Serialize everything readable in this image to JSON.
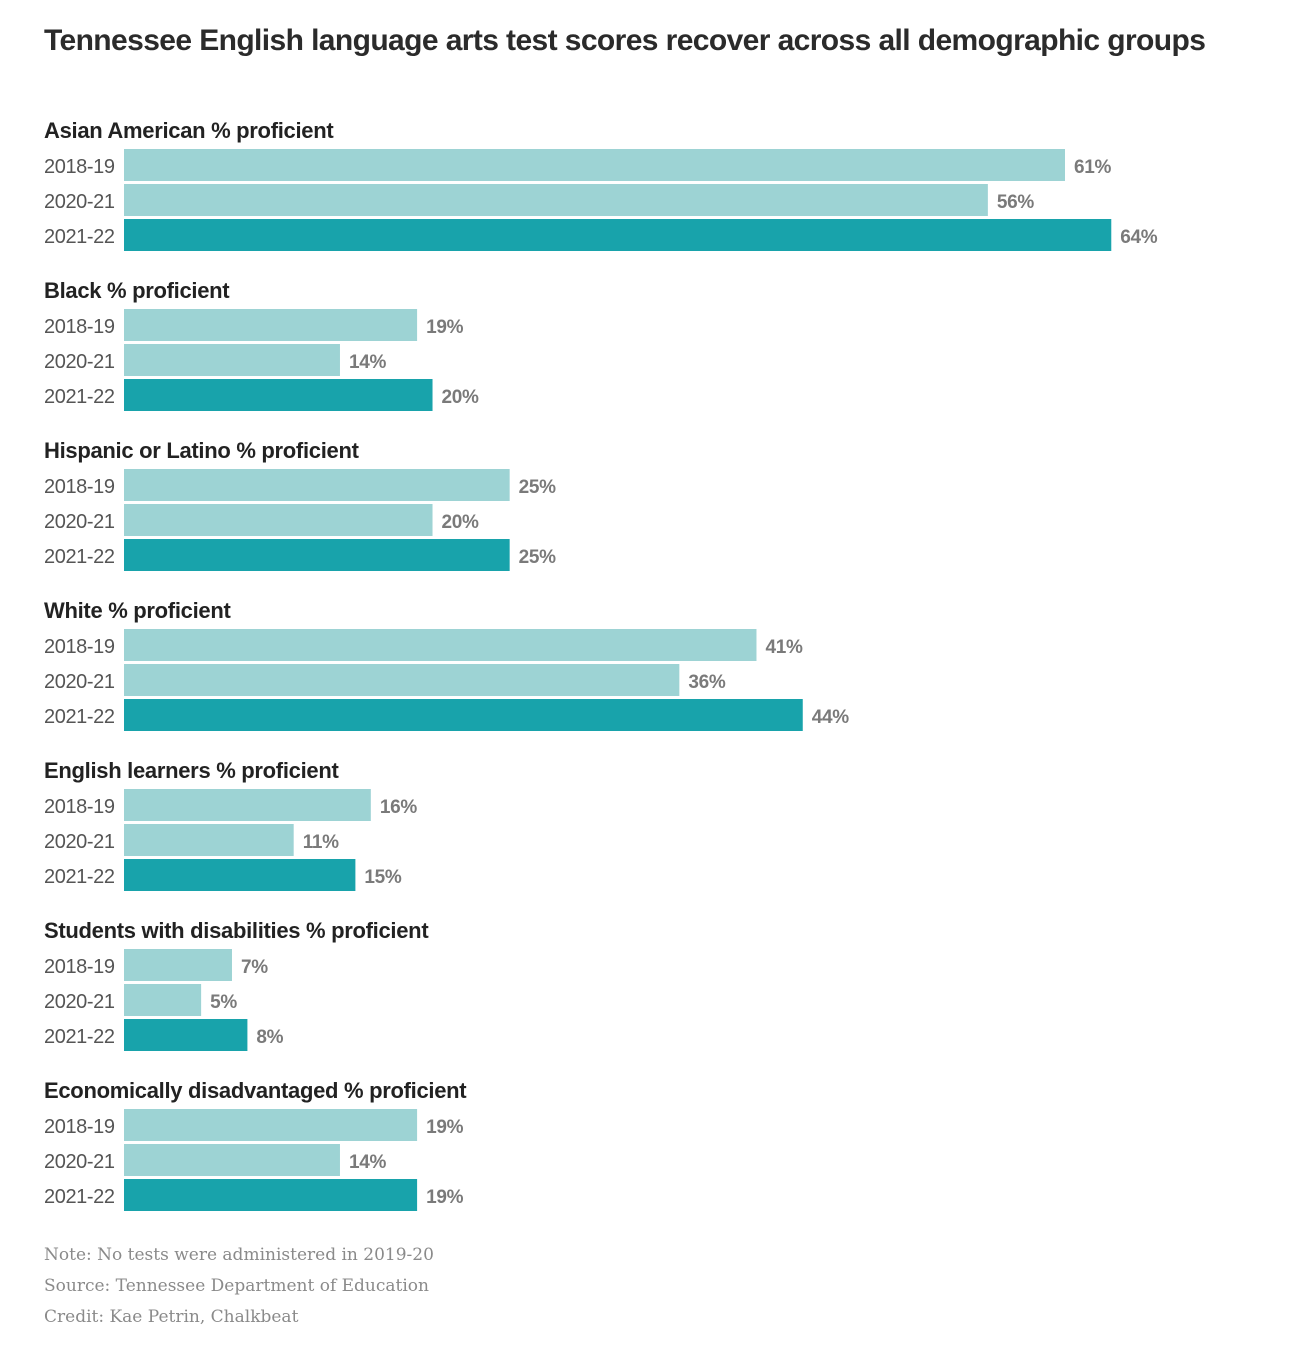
{
  "title": "Tennessee English language arts test scores recover across all demographic groups",
  "colors": {
    "previous_years": "#9dd3d4",
    "latest_year": "#18a3ab",
    "title_text": "#2b2b2b",
    "value_text": "#7a7a7a",
    "notes_text": "#8a8a8a"
  },
  "chart_data": {
    "type": "bar",
    "orientation": "horizontal",
    "value_suffix": "%",
    "xlim": [
      0,
      70
    ],
    "grid": false,
    "categories": [
      "2018-19",
      "2020-21",
      "2021-22"
    ],
    "panels": [
      {
        "title": "Asian American % proficient",
        "values": [
          61,
          56,
          64
        ]
      },
      {
        "title": "Black % proficient",
        "values": [
          19,
          14,
          20
        ]
      },
      {
        "title": "Hispanic or Latino % proficient",
        "values": [
          25,
          20,
          25
        ]
      },
      {
        "title": "White % proficient",
        "values": [
          41,
          36,
          44
        ]
      },
      {
        "title": "English learners % proficient",
        "values": [
          16,
          11,
          15
        ]
      },
      {
        "title": "Students with disabilities % proficient",
        "values": [
          7,
          5,
          8
        ]
      },
      {
        "title": "Economically disadvantaged % proficient",
        "values": [
          19,
          14,
          19
        ]
      }
    ]
  },
  "notes": {
    "note": "Note: No tests were administered in 2019-20",
    "source": "Source: Tennessee Department of Education",
    "credit": "Credit: Kae Petrin, Chalkbeat"
  }
}
